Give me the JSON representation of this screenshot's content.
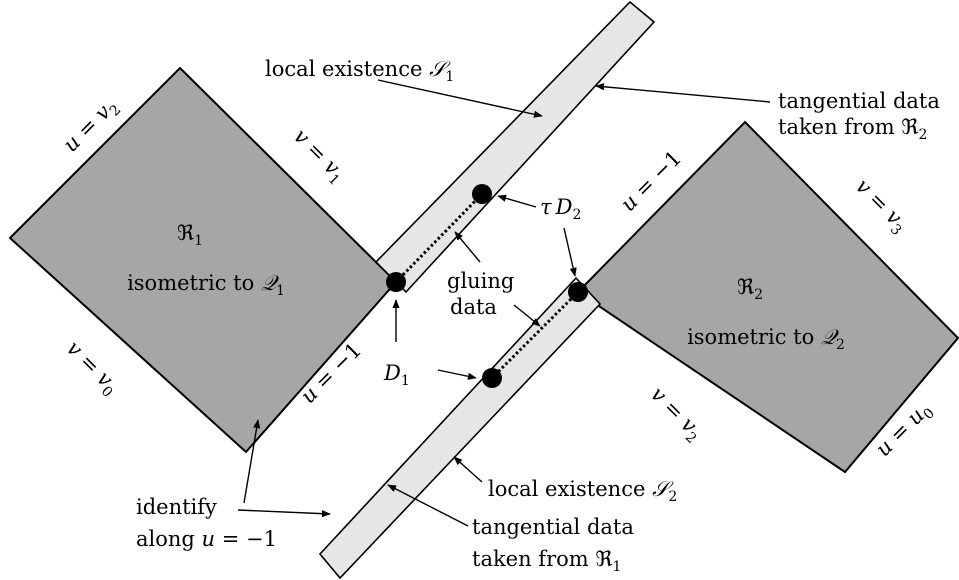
{
  "colors": {
    "region_fill": "#a6a6a6",
    "strip_fill": "#e6e6e6",
    "stroke": "#000000",
    "dot": "#000000"
  },
  "regions": {
    "r1": {
      "symbol": "ℜ",
      "sub": "1",
      "prefix": "isometric to ",
      "target": "𝒬",
      "target_sub": "1"
    },
    "r2": {
      "symbol": "ℜ",
      "sub": "2",
      "prefix": "isometric to ",
      "target": "𝒬",
      "target_sub": "2"
    }
  },
  "boundary_labels": {
    "u_eq_v2": {
      "var": "u",
      "eq": " = ",
      "rhs": "v",
      "sub": "2"
    },
    "v_eq_v1": {
      "var": "v",
      "eq": " = ",
      "rhs": "v",
      "sub": "1"
    },
    "v_eq_v0": {
      "var": "v",
      "eq": " = ",
      "rhs": "v",
      "sub": "0"
    },
    "u_eq_m1_left": {
      "var": "u",
      "eq": " = ",
      "rhs": "−1"
    },
    "u_eq_m1_right": {
      "var": "u",
      "eq": " = ",
      "rhs": "−1"
    },
    "v_eq_v3": {
      "var": "v",
      "eq": " = ",
      "rhs": "v",
      "sub": "3"
    },
    "v_eq_v2": {
      "var": "v",
      "eq": " = ",
      "rhs": "v",
      "sub": "2"
    },
    "u_eq_u0": {
      "var": "u",
      "eq": " = ",
      "rhs": "u",
      "sub": "0"
    }
  },
  "annotations": {
    "local_existence_s1": {
      "text": "local existence ",
      "sym": "𝒮",
      "sub": "1"
    },
    "local_existence_s2": {
      "text": "local existence ",
      "sym": "𝒮",
      "sub": "2"
    },
    "tangential_r2": {
      "line1": "tangential data",
      "line2": "taken from ",
      "sym": "ℜ",
      "sub": "2"
    },
    "tangential_r1": {
      "line1": "tangential data",
      "line2": "taken from ",
      "sym": "ℜ",
      "sub": "1"
    },
    "tau_d2": {
      "tau": "τ",
      "sym": "D",
      "sub": "2"
    },
    "d1": {
      "sym": "D",
      "sub": "1"
    },
    "gluing": {
      "line1": "gluing",
      "line2": "data"
    },
    "identify": {
      "line1": "identify",
      "line2": "along ",
      "var": "u",
      "eq": " = −1"
    }
  }
}
